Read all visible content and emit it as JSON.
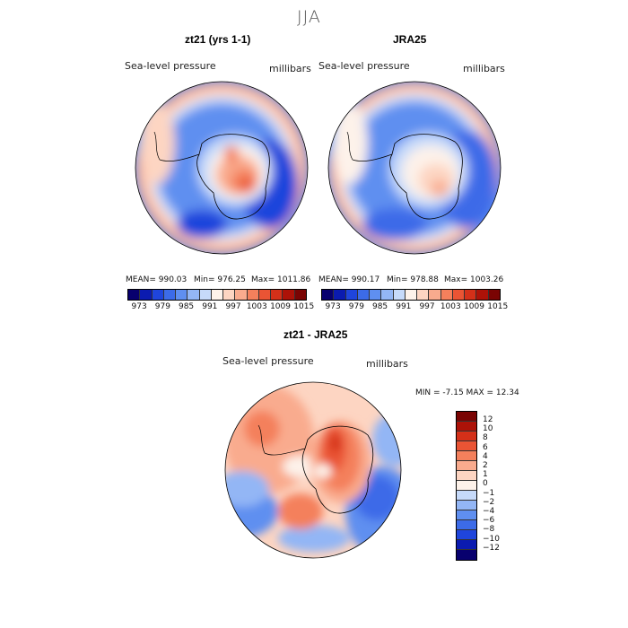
{
  "figure": {
    "season": "JJA"
  },
  "panels": [
    {
      "title": "zt21 (yrs 1-1)",
      "variable": "Sea-level pressure",
      "units": "millibars",
      "stats": {
        "mean": "MEAN= 990.03",
        "min": "Min= 976.25",
        "max": "Max= 1011.86"
      }
    },
    {
      "title": "JRA25",
      "variable": "Sea-level pressure",
      "units": "millibars",
      "stats": {
        "mean": "MEAN= 990.17",
        "min": "Min= 978.88",
        "max": "Max= 1003.26"
      }
    },
    {
      "title": "zt21 - JRA25",
      "variable": "Sea-level pressure",
      "units": "millibars",
      "stats": {
        "minmax": "MIN =   -7.15 MAX =  12.34"
      }
    }
  ],
  "colors": {
    "abs_scale": [
      "#08006e",
      "#0b1bb0",
      "#1f45dc",
      "#3c6be8",
      "#5f8ff0",
      "#93b6f5",
      "#c6dafa",
      "#fdf2ea",
      "#fdd5c2",
      "#f9ab8e",
      "#f4805c",
      "#ea5434",
      "#d43019",
      "#ad1208",
      "#7a0403"
    ],
    "diff_scale": [
      "#7a0403",
      "#ad1208",
      "#d43019",
      "#ea5434",
      "#f4805c",
      "#f9ab8e",
      "#fdd5c2",
      "#fdf2ea",
      "#c6dafa",
      "#93b6f5",
      "#5f8ff0",
      "#3c6be8",
      "#1f45dc",
      "#0b1bb0",
      "#08006e"
    ]
  },
  "chart_data": [
    {
      "type": "heatmap",
      "title": "zt21 (yrs 1-1)",
      "variable": "Sea-level pressure",
      "units": "millibars",
      "mean": 990.03,
      "min": 976.25,
      "max": 1011.86,
      "colorbar_ticks": [
        "973",
        "979",
        "985",
        "991",
        "997",
        "1003",
        "1009",
        "1015"
      ]
    },
    {
      "type": "heatmap",
      "title": "JRA25",
      "variable": "Sea-level pressure",
      "units": "millibars",
      "mean": 990.17,
      "min": 978.88,
      "max": 1003.26,
      "colorbar_ticks": [
        "973",
        "979",
        "985",
        "991",
        "997",
        "1003",
        "1009",
        "1015"
      ]
    },
    {
      "type": "heatmap",
      "title": "zt21 - JRA25",
      "variable": "Sea-level pressure",
      "units": "millibars",
      "min": -7.15,
      "max": 12.34,
      "colorbar_ticks": [
        "12",
        "10",
        "8",
        "6",
        "4",
        "2",
        "1",
        "0",
        "−1",
        "−2",
        "−4",
        "−6",
        "−8",
        "−10",
        "−12"
      ]
    }
  ]
}
